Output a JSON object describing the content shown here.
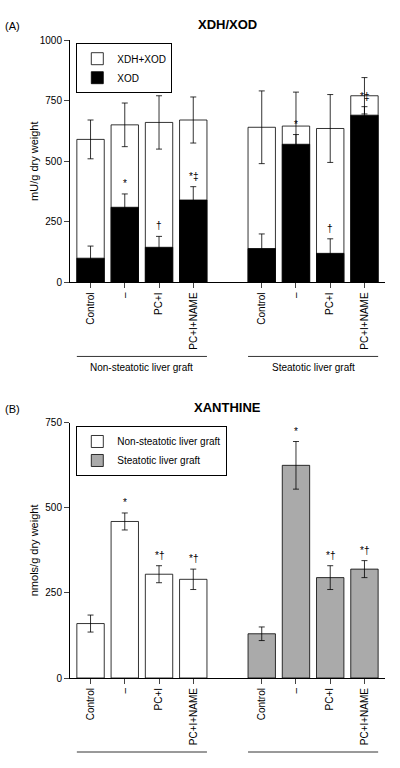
{
  "chart_data": [
    {
      "type": "bar",
      "title": "XDH/XOD",
      "panel_label": "(A)",
      "ylabel": "mU/g dry weight",
      "groups": [
        "Non-steatotic liver graft",
        "Steatotic liver graft"
      ],
      "categories": [
        "Control",
        "–",
        "PC+I",
        "PC+I+NAME",
        "Control",
        "–",
        "PC+I",
        "PC+I+NAME"
      ],
      "series": [
        {
          "name": "XDH+XOD",
          "color": "white",
          "values": [
            590,
            650,
            660,
            670,
            640,
            645,
            635,
            770
          ],
          "errors": [
            80,
            90,
            110,
            95,
            150,
            140,
            140,
            75
          ]
        },
        {
          "name": "XOD",
          "color": "black",
          "values": [
            100,
            310,
            145,
            340,
            140,
            570,
            120,
            690
          ],
          "errors": [
            50,
            55,
            45,
            55,
            60,
            40,
            60,
            35
          ],
          "annotations": [
            null,
            "*",
            "†",
            "*‡",
            null,
            "*",
            "†",
            "*‡"
          ]
        }
      ],
      "ylim": [
        0,
        1000
      ],
      "yticks": [
        0,
        250,
        500,
        750,
        1000
      ],
      "grid": false,
      "legend": "upper left"
    },
    {
      "type": "bar",
      "title": "XANTHINE",
      "panel_label": "(B)",
      "ylabel": "nmols/g dry weight",
      "categories": [
        "Control",
        "–",
        "PC+I",
        "PC+I+NAME"
      ],
      "series": [
        {
          "name": "Non-steatotic liver graft",
          "color": "white",
          "values": [
            160,
            460,
            305,
            290
          ],
          "errors": [
            25,
            25,
            25,
            30
          ],
          "annotations": [
            null,
            "*",
            "*†",
            "*†"
          ]
        },
        {
          "name": "Steatotic liver graft",
          "color": "#aaaaaa",
          "values": [
            130,
            625,
            295,
            320
          ],
          "errors": [
            20,
            70,
            35,
            25
          ],
          "annotations": [
            null,
            "*",
            "*†",
            "*†"
          ]
        }
      ],
      "ylim": [
        0,
        750
      ],
      "yticks": [
        0,
        250,
        500,
        750
      ],
      "grid": false,
      "legend": "upper left"
    }
  ]
}
